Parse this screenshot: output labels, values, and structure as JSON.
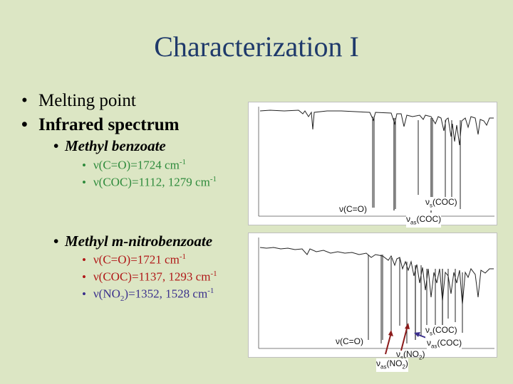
{
  "title": "Characterization I",
  "bullets": [
    "Melting point",
    "Infrared spectrum"
  ],
  "compound1": {
    "name": "Methyl benzoate",
    "line1": {
      "prefix": "ν(C=O)=1724 cm",
      "sup": "-1"
    },
    "line2": {
      "prefix": "ν(COC)=1112, 1279 cm",
      "sup": "-1"
    }
  },
  "compound2": {
    "name": "Methyl m-nitrobenzoate",
    "line1": {
      "prefix": "ν(C=O)=1721 cm",
      "sup": "-1"
    },
    "line2": {
      "prefix": "ν(COC)=1137, 1293 cm",
      "sup": "-1"
    },
    "line3": {
      "prefix": "ν(NO",
      "sub": "2",
      "mid": ")=1352, 1528 cm",
      "sup": "-1"
    }
  },
  "spectrum1_labels": {
    "co": "ν(C=O)",
    "coc_s": {
      "nu": "ν",
      "sub": "s",
      "rest": "(COC)"
    },
    "coc_as": {
      "nu": "ν",
      "sub": "as",
      "rest": "(COC)"
    }
  },
  "spectrum2_labels": {
    "co": "ν(C=O)",
    "coc_s": {
      "nu": "ν",
      "sub": "s",
      "rest": "(COC)"
    },
    "coc_as": {
      "nu": "ν",
      "sub": "as",
      "rest": "(COC)"
    },
    "no2_s": {
      "nu": "ν",
      "sub": "s",
      "rest1": "(NO",
      "sub2": "2",
      "rest2": ")"
    },
    "no2_as": {
      "nu": "ν",
      "sub": "as",
      "rest1": "(NO",
      "sub2": "2",
      "rest2": ")"
    }
  },
  "colors": {
    "background": "#dce6c4",
    "title": "#1f3a6b",
    "green": "#2e8b3c",
    "red": "#b01818",
    "purple": "#3a2f8c",
    "arrow_red": "#8b1a1a"
  }
}
